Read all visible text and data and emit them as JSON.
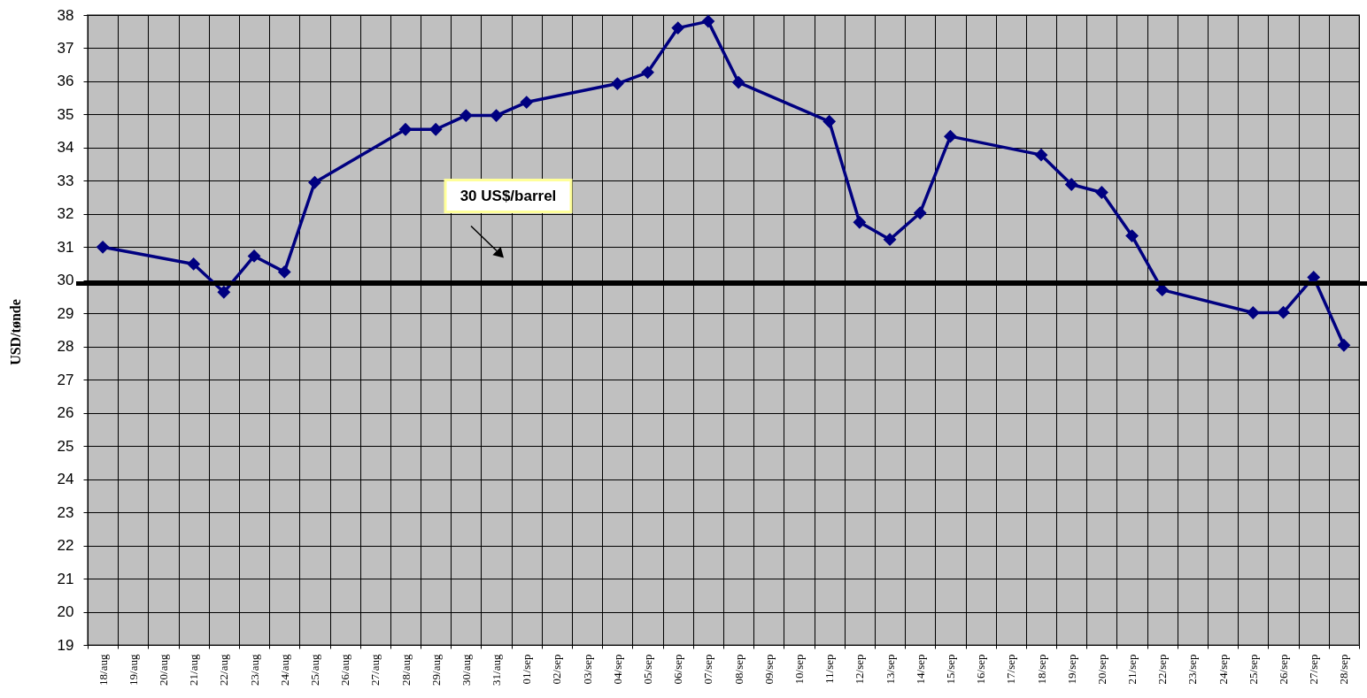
{
  "chart_data": {
    "type": "line",
    "ylabel": "USD/tønde",
    "categories": [
      "18/aug",
      "19/aug",
      "20/aug",
      "21/aug",
      "22/aug",
      "23/aug",
      "24/aug",
      "25/aug",
      "26/aug",
      "27/aug",
      "28/aug",
      "29/aug",
      "30/aug",
      "31/aug",
      "01/sep",
      "02/sep",
      "03/sep",
      "04/sep",
      "05/sep",
      "06/sep",
      "07/sep",
      "08/sep",
      "09/sep",
      "10/sep",
      "11/sep",
      "12/sep",
      "13/sep",
      "14/sep",
      "15/sep",
      "16/sep",
      "17/sep",
      "18/sep",
      "19/sep",
      "20/sep",
      "21/sep",
      "22/sep",
      "23/sep",
      "24/sep",
      "25/sep",
      "26/sep",
      "27/sep",
      "28/sep"
    ],
    "series": [
      {
        "color": "#000080",
        "x": [
          "18/aug",
          "21/aug",
          "22/aug",
          "23/aug",
          "24/aug",
          "25/aug",
          "28/aug",
          "29/aug",
          "30/aug",
          "31/aug",
          "01/sep",
          "04/sep",
          "05/sep",
          "06/sep",
          "07/sep",
          "08/sep",
          "11/sep",
          "12/sep",
          "13/sep",
          "14/sep",
          "15/sep",
          "18/sep",
          "19/sep",
          "20/sep",
          "21/sep",
          "22/sep",
          "25/sep",
          "26/sep",
          "27/sep",
          "28/sep"
        ],
        "values": [
          31.0,
          30.49,
          29.64,
          30.73,
          30.25,
          32.95,
          34.55,
          34.55,
          34.97,
          34.97,
          35.37,
          35.93,
          36.27,
          37.61,
          37.81,
          35.97,
          34.79,
          31.75,
          31.23,
          32.03,
          34.34,
          33.78,
          32.89,
          32.65,
          31.34,
          29.71,
          29.02,
          29.03,
          30.09,
          28.04
        ]
      }
    ],
    "ylim": [
      19,
      38
    ],
    "yticks": [
      19,
      20,
      21,
      22,
      23,
      24,
      25,
      26,
      27,
      28,
      29,
      30,
      31,
      32,
      33,
      34,
      35,
      36,
      37,
      38
    ],
    "grid": true,
    "marker": "diamond",
    "line_style": "solid",
    "ref_lines": [
      {
        "axis": "y",
        "value": 29.9,
        "label": "30 US$/barrel",
        "color": "#000000",
        "line_style": "solid"
      }
    ]
  }
}
